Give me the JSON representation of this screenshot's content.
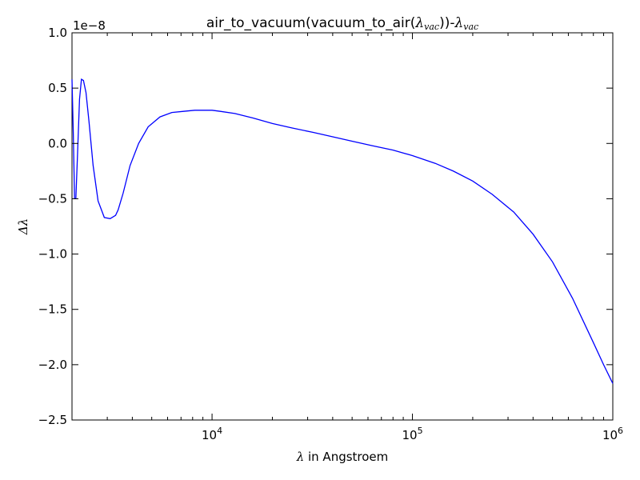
{
  "chart_data": {
    "type": "line",
    "title": {
      "prefix": "air_to_vacuum(vacuum_to_air(",
      "sym1": "λ",
      "sub1": "vac",
      "middle": "))-",
      "sym2": "λ",
      "sub2": "vac"
    },
    "xlabel": {
      "symbol": "λ",
      "text": " in Angstroem"
    },
    "ylabel": "Δλ",
    "offset_text": "1e−8",
    "x_scale": "log",
    "xlim": [
      2000,
      1000000
    ],
    "ylim": [
      -2.5,
      1.0
    ],
    "y_ticks": [
      {
        "value": 1.0,
        "label": "1.0"
      },
      {
        "value": 0.5,
        "label": "0.5"
      },
      {
        "value": 0.0,
        "label": "0.0"
      },
      {
        "value": -0.5,
        "label": "−0.5"
      },
      {
        "value": -1.0,
        "label": "−1.0"
      },
      {
        "value": -1.5,
        "label": "−1.5"
      },
      {
        "value": -2.0,
        "label": "−2.0"
      },
      {
        "value": -2.5,
        "label": "−2.5"
      }
    ],
    "x_ticks": [
      {
        "value": 10000,
        "base": "10",
        "exp": "4"
      },
      {
        "value": 100000,
        "base": "10",
        "exp": "5"
      },
      {
        "value": 1000000,
        "base": "10",
        "exp": "6"
      }
    ],
    "grid": false,
    "series": [
      {
        "color": "#0000ff",
        "x": [
          2000,
          2030,
          2060,
          2090,
          2130,
          2180,
          2230,
          2280,
          2350,
          2430,
          2550,
          2700,
          2900,
          3100,
          3300,
          3400,
          3600,
          3900,
          4300,
          4800,
          5500,
          6300,
          7200,
          8200,
          9300,
          10000,
          11000,
          13000,
          16000,
          20000,
          25000,
          32000,
          40000,
          50000,
          63000,
          80000,
          100000,
          130000,
          160000,
          200000,
          250000,
          320000,
          400000,
          500000,
          630000,
          800000,
          900000,
          1000000
        ],
        "y": [
          0.58,
          0.1,
          -0.5,
          -0.5,
          -0.1,
          0.4,
          0.58,
          0.57,
          0.46,
          0.2,
          -0.2,
          -0.52,
          -0.67,
          -0.68,
          -0.65,
          -0.6,
          -0.45,
          -0.2,
          0.0,
          0.15,
          0.24,
          0.28,
          0.29,
          0.3,
          0.3,
          0.3,
          0.29,
          0.27,
          0.23,
          0.18,
          0.14,
          0.1,
          0.06,
          0.02,
          -0.02,
          -0.06,
          -0.11,
          -0.18,
          -0.25,
          -0.34,
          -0.46,
          -0.62,
          -0.82,
          -1.07,
          -1.4,
          -1.8,
          -2.0,
          -2.17
        ]
      }
    ]
  }
}
